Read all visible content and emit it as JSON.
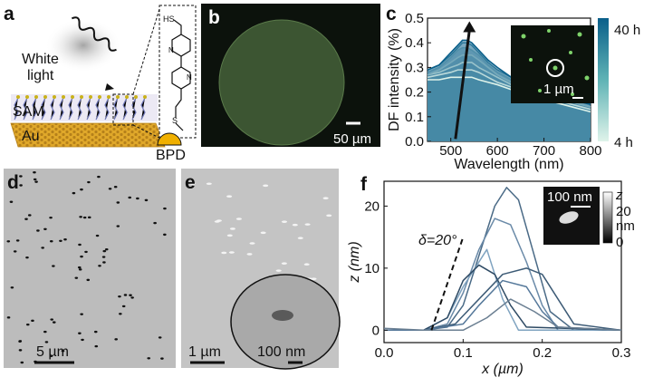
{
  "panels": {
    "a": {
      "label": "a",
      "white_light_line1": "White",
      "white_light_line2": "light",
      "sam_label": "SAM",
      "au_label": "Au",
      "bpd_label": "BPD",
      "hs_label": "HS",
      "n_label": "N",
      "s_label": "S"
    },
    "b": {
      "label": "b",
      "scalebar": "50 µm"
    },
    "c": {
      "label": "c",
      "inset_scalebar": "1 µm",
      "colorbar_top": "40 h",
      "colorbar_bottom": "4 h"
    },
    "d": {
      "label": "d",
      "scalebar": "5 µm"
    },
    "e": {
      "label": "e",
      "scalebar": "1 µm",
      "inset_scalebar": "100 nm"
    },
    "f": {
      "label": "f",
      "angle_label": "δ=20°",
      "inset_scalebar": "100 nm",
      "inset_colorbar_title": "z",
      "inset_colorbar_top": "20",
      "inset_colorbar_unit": "nm",
      "inset_colorbar_bottom": "0"
    }
  },
  "colors": {
    "au": "#e0a82a",
    "bpd": "#f0b000",
    "darkfield_bg": "#0c120c",
    "particle_green": "#7fd36b",
    "colormap_start": "#dff3ea",
    "colormap_end": "#0a5f8a",
    "sem_bg": "#b8b8b8",
    "profile_line": "#3f5f7a"
  },
  "chart_data": [
    {
      "type": "line",
      "panel": "c",
      "xlabel": "Wavelength (nm)",
      "ylabel": "DF intensity (%)",
      "xlim": [
        450,
        800
      ],
      "ylim": [
        0.0,
        0.5
      ],
      "xticks": [
        500,
        600,
        700,
        800
      ],
      "yticks": [
        0.0,
        0.1,
        0.2,
        0.3,
        0.4,
        0.5
      ],
      "colorbar": {
        "top": "40 h",
        "bottom": "4 h"
      },
      "x": [
        450,
        475,
        500,
        515,
        525,
        535,
        545,
        560,
        580,
        600,
        630,
        660,
        700,
        740,
        780,
        800
      ],
      "series": [
        {
          "values": [
            0.25,
            0.25,
            0.26,
            0.26,
            0.26,
            0.26,
            0.26,
            0.25,
            0.24,
            0.23,
            0.21,
            0.19,
            0.17,
            0.15,
            0.13,
            0.12
          ]
        },
        {
          "values": [
            0.26,
            0.27,
            0.28,
            0.29,
            0.29,
            0.29,
            0.29,
            0.28,
            0.26,
            0.24,
            0.22,
            0.2,
            0.18,
            0.16,
            0.14,
            0.13
          ]
        },
        {
          "values": [
            0.27,
            0.28,
            0.3,
            0.31,
            0.32,
            0.32,
            0.32,
            0.3,
            0.28,
            0.26,
            0.23,
            0.21,
            0.19,
            0.17,
            0.15,
            0.14
          ]
        },
        {
          "values": [
            0.27,
            0.29,
            0.32,
            0.34,
            0.35,
            0.35,
            0.35,
            0.33,
            0.3,
            0.27,
            0.24,
            0.22,
            0.2,
            0.18,
            0.15,
            0.14
          ]
        },
        {
          "values": [
            0.28,
            0.3,
            0.34,
            0.37,
            0.38,
            0.38,
            0.37,
            0.35,
            0.31,
            0.28,
            0.25,
            0.23,
            0.2,
            0.18,
            0.16,
            0.15
          ]
        },
        {
          "values": [
            0.29,
            0.31,
            0.35,
            0.38,
            0.4,
            0.4,
            0.39,
            0.36,
            0.32,
            0.29,
            0.26,
            0.23,
            0.21,
            0.19,
            0.16,
            0.15
          ]
        },
        {
          "values": [
            0.29,
            0.31,
            0.36,
            0.39,
            0.41,
            0.41,
            0.4,
            0.37,
            0.33,
            0.3,
            0.26,
            0.24,
            0.21,
            0.19,
            0.16,
            0.15
          ]
        }
      ],
      "arrow": {
        "from": [
          510,
          0.01
        ],
        "to": [
          540,
          0.48
        ]
      }
    },
    {
      "type": "line",
      "panel": "f",
      "xlabel": "x (µm)",
      "ylabel": "z (nm)",
      "xlim": [
        0.0,
        0.3
      ],
      "ylim": [
        -2,
        24
      ],
      "xticks": [
        0.0,
        0.1,
        0.2,
        0.3
      ],
      "yticks": [
        0,
        10,
        20
      ],
      "series": [
        {
          "x": [
            0.0,
            0.05,
            0.08,
            0.1,
            0.12,
            0.14,
            0.155,
            0.17,
            0.19,
            0.21,
            0.24,
            0.3
          ],
          "values": [
            0,
            0,
            0.5,
            4,
            12,
            20,
            23,
            21,
            12,
            3,
            0,
            0
          ]
        },
        {
          "x": [
            0.0,
            0.05,
            0.08,
            0.1,
            0.12,
            0.14,
            0.16,
            0.18,
            0.2,
            0.22,
            0.3
          ],
          "values": [
            0,
            0,
            1,
            6,
            13,
            18,
            17,
            11,
            4,
            0,
            0
          ]
        },
        {
          "x": [
            0.0,
            0.05,
            0.08,
            0.1,
            0.13,
            0.15,
            0.17,
            0.3
          ],
          "values": [
            0,
            0,
            2,
            7,
            13,
            5,
            0,
            0
          ]
        },
        {
          "x": [
            0.0,
            0.05,
            0.08,
            0.1,
            0.12,
            0.14,
            0.16,
            0.18,
            0.3
          ],
          "values": [
            0,
            0,
            2,
            8,
            10.5,
            9,
            4,
            0.5,
            0
          ]
        },
        {
          "x": [
            0.0,
            0.05,
            0.09,
            0.12,
            0.15,
            0.18,
            0.2,
            0.22,
            0.24,
            0.3
          ],
          "values": [
            0,
            0,
            1,
            5,
            9,
            10,
            9,
            5,
            1,
            0
          ]
        },
        {
          "x": [
            0.0,
            0.05,
            0.1,
            0.12,
            0.15,
            0.18,
            0.2,
            0.22,
            0.3
          ],
          "values": [
            0,
            0,
            1,
            4,
            8,
            7,
            3,
            0.5,
            0
          ]
        },
        {
          "x": [
            0.0,
            0.05,
            0.1,
            0.13,
            0.16,
            0.19,
            0.22,
            0.3
          ],
          "values": [
            0.3,
            0,
            0,
            2,
            5,
            3,
            0.5,
            0
          ]
        }
      ],
      "angle_line": {
        "from": [
          0.06,
          0
        ],
        "to": [
          0.1,
          15
        ]
      }
    }
  ]
}
